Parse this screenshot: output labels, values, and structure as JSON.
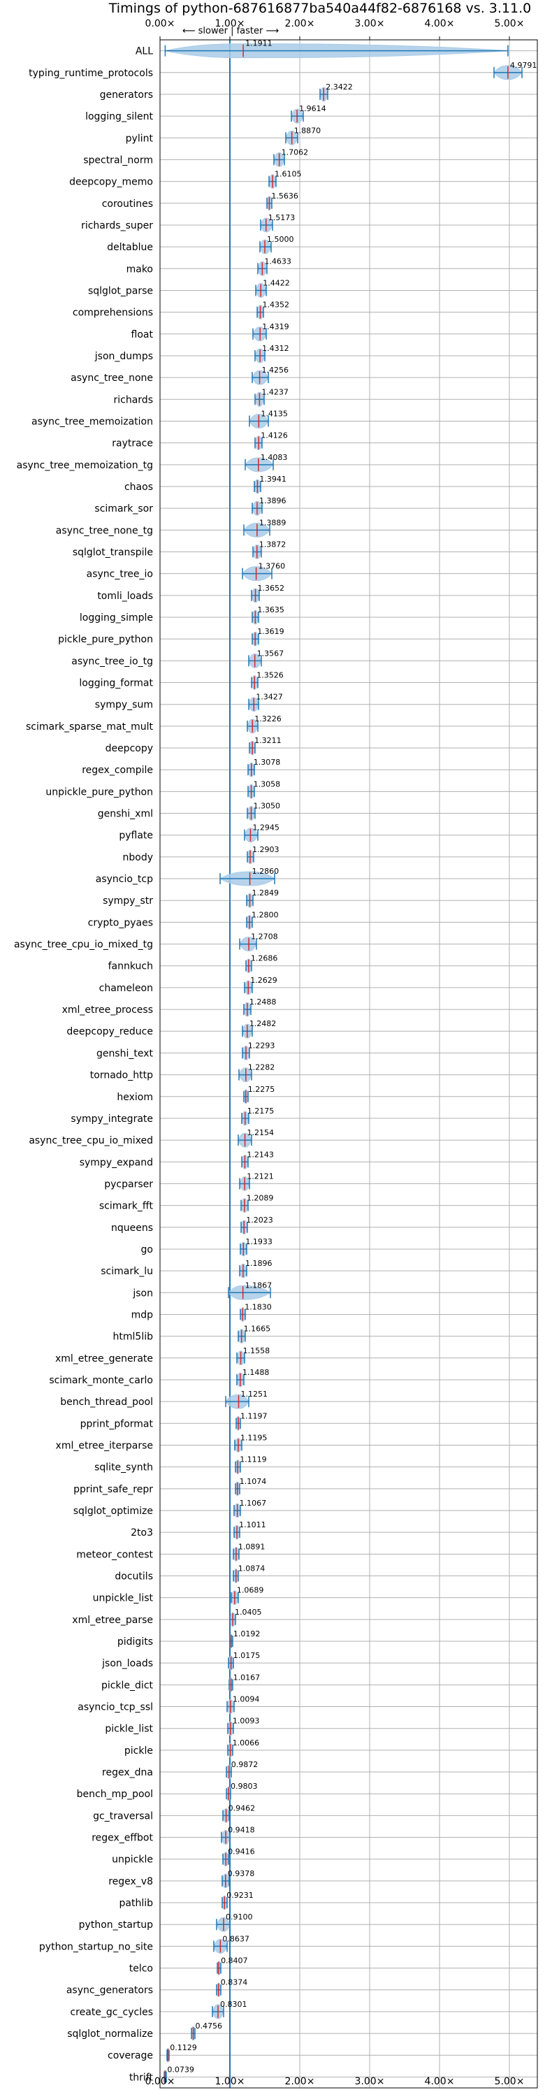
{
  "chart_data": {
    "type": "violin",
    "title": "Timings of python-687616877ba540a44f82-6876168 vs. 3.11.0",
    "annotation": "⟵ slower  |  faster ⟶",
    "xlabel": "",
    "ylabel": "",
    "xlim": [
      0,
      5.4
    ],
    "xticks": [
      "0.00×",
      "1.00×",
      "2.00×",
      "3.00×",
      "4.00×",
      "5.00×"
    ],
    "grid": true,
    "reference_line": 1.0,
    "colors": {
      "violin": "#a9cbe8",
      "mark": "#1f77b4",
      "median": "#d62728",
      "grid": "#b0b0b0"
    },
    "benchmarks": [
      {
        "name": "ALL",
        "value": 1.1911,
        "lo": 0.0739,
        "hi": 4.9791
      },
      {
        "name": "typing_runtime_protocols",
        "value": 4.9791,
        "lo": 4.78,
        "hi": 5.18
      },
      {
        "name": "generators",
        "value": 2.3422,
        "lo": 2.29,
        "hi": 2.4
      },
      {
        "name": "logging_silent",
        "value": 1.9614,
        "lo": 1.88,
        "hi": 2.05
      },
      {
        "name": "pylint",
        "value": 1.887,
        "lo": 1.8,
        "hi": 1.97
      },
      {
        "name": "spectral_norm",
        "value": 1.7062,
        "lo": 1.63,
        "hi": 1.78
      },
      {
        "name": "deepcopy_memo",
        "value": 1.6105,
        "lo": 1.56,
        "hi": 1.66
      },
      {
        "name": "coroutines",
        "value": 1.5636,
        "lo": 1.53,
        "hi": 1.6
      },
      {
        "name": "richards_super",
        "value": 1.5173,
        "lo": 1.44,
        "hi": 1.61
      },
      {
        "name": "deltablue",
        "value": 1.5,
        "lo": 1.43,
        "hi": 1.59
      },
      {
        "name": "mako",
        "value": 1.4633,
        "lo": 1.4,
        "hi": 1.53
      },
      {
        "name": "sqlglot_parse",
        "value": 1.4422,
        "lo": 1.37,
        "hi": 1.52
      },
      {
        "name": "comprehensions",
        "value": 1.4352,
        "lo": 1.39,
        "hi": 1.48
      },
      {
        "name": "float",
        "value": 1.4319,
        "lo": 1.33,
        "hi": 1.52
      },
      {
        "name": "json_dumps",
        "value": 1.4312,
        "lo": 1.36,
        "hi": 1.5
      },
      {
        "name": "async_tree_none",
        "value": 1.4256,
        "lo": 1.32,
        "hi": 1.55
      },
      {
        "name": "richards",
        "value": 1.4237,
        "lo": 1.36,
        "hi": 1.49
      },
      {
        "name": "async_tree_memoization",
        "value": 1.4135,
        "lo": 1.28,
        "hi": 1.55
      },
      {
        "name": "raytrace",
        "value": 1.4126,
        "lo": 1.36,
        "hi": 1.46
      },
      {
        "name": "async_tree_memoization_tg",
        "value": 1.4083,
        "lo": 1.22,
        "hi": 1.62
      },
      {
        "name": "chaos",
        "value": 1.3941,
        "lo": 1.35,
        "hi": 1.44
      },
      {
        "name": "scimark_sor",
        "value": 1.3896,
        "lo": 1.32,
        "hi": 1.46
      },
      {
        "name": "async_tree_none_tg",
        "value": 1.3889,
        "lo": 1.2,
        "hi": 1.57
      },
      {
        "name": "sqlglot_transpile",
        "value": 1.3872,
        "lo": 1.33,
        "hi": 1.45
      },
      {
        "name": "async_tree_io",
        "value": 1.376,
        "lo": 1.18,
        "hi": 1.6
      },
      {
        "name": "tomli_loads",
        "value": 1.3652,
        "lo": 1.31,
        "hi": 1.42
      },
      {
        "name": "logging_simple",
        "value": 1.3635,
        "lo": 1.32,
        "hi": 1.41
      },
      {
        "name": "pickle_pure_python",
        "value": 1.3619,
        "lo": 1.32,
        "hi": 1.41
      },
      {
        "name": "async_tree_io_tg",
        "value": 1.3567,
        "lo": 1.27,
        "hi": 1.45
      },
      {
        "name": "logging_format",
        "value": 1.3526,
        "lo": 1.31,
        "hi": 1.4
      },
      {
        "name": "sympy_sum",
        "value": 1.3427,
        "lo": 1.27,
        "hi": 1.41
      },
      {
        "name": "scimark_sparse_mat_mult",
        "value": 1.3226,
        "lo": 1.25,
        "hi": 1.4
      },
      {
        "name": "deepcopy",
        "value": 1.3211,
        "lo": 1.28,
        "hi": 1.36
      },
      {
        "name": "regex_compile",
        "value": 1.3078,
        "lo": 1.26,
        "hi": 1.35
      },
      {
        "name": "unpickle_pure_python",
        "value": 1.3058,
        "lo": 1.26,
        "hi": 1.35
      },
      {
        "name": "genshi_xml",
        "value": 1.305,
        "lo": 1.25,
        "hi": 1.36
      },
      {
        "name": "pyflate",
        "value": 1.2945,
        "lo": 1.21,
        "hi": 1.4
      },
      {
        "name": "nbody",
        "value": 1.2903,
        "lo": 1.25,
        "hi": 1.34
      },
      {
        "name": "asyncio_tcp",
        "value": 1.286,
        "lo": 0.86,
        "hi": 1.64
      },
      {
        "name": "sympy_str",
        "value": 1.2849,
        "lo": 1.24,
        "hi": 1.33
      },
      {
        "name": "crypto_pyaes",
        "value": 1.28,
        "lo": 1.24,
        "hi": 1.32
      },
      {
        "name": "async_tree_cpu_io_mixed_tg",
        "value": 1.2708,
        "lo": 1.14,
        "hi": 1.38
      },
      {
        "name": "fannkuch",
        "value": 1.2686,
        "lo": 1.23,
        "hi": 1.31
      },
      {
        "name": "chameleon",
        "value": 1.2629,
        "lo": 1.21,
        "hi": 1.32
      },
      {
        "name": "xml_etree_process",
        "value": 1.2488,
        "lo": 1.2,
        "hi": 1.3
      },
      {
        "name": "deepcopy_reduce",
        "value": 1.2482,
        "lo": 1.18,
        "hi": 1.32
      },
      {
        "name": "genshi_text",
        "value": 1.2293,
        "lo": 1.18,
        "hi": 1.28
      },
      {
        "name": "tornado_http",
        "value": 1.2282,
        "lo": 1.13,
        "hi": 1.31
      },
      {
        "name": "hexiom",
        "value": 1.2275,
        "lo": 1.2,
        "hi": 1.26
      },
      {
        "name": "sympy_integrate",
        "value": 1.2175,
        "lo": 1.17,
        "hi": 1.27
      },
      {
        "name": "async_tree_cpu_io_mixed",
        "value": 1.2154,
        "lo": 1.12,
        "hi": 1.31
      },
      {
        "name": "sympy_expand",
        "value": 1.2143,
        "lo": 1.17,
        "hi": 1.26
      },
      {
        "name": "pycparser",
        "value": 1.2121,
        "lo": 1.14,
        "hi": 1.28
      },
      {
        "name": "scimark_fft",
        "value": 1.2089,
        "lo": 1.16,
        "hi": 1.26
      },
      {
        "name": "nqueens",
        "value": 1.2023,
        "lo": 1.16,
        "hi": 1.25
      },
      {
        "name": "go",
        "value": 1.1933,
        "lo": 1.15,
        "hi": 1.24
      },
      {
        "name": "scimark_lu",
        "value": 1.1896,
        "lo": 1.14,
        "hi": 1.24
      },
      {
        "name": "json",
        "value": 1.1867,
        "lo": 0.98,
        "hi": 1.58
      },
      {
        "name": "mdp",
        "value": 1.183,
        "lo": 1.15,
        "hi": 1.22
      },
      {
        "name": "html5lib",
        "value": 1.1665,
        "lo": 1.12,
        "hi": 1.22
      },
      {
        "name": "xml_etree_generate",
        "value": 1.1558,
        "lo": 1.1,
        "hi": 1.21
      },
      {
        "name": "scimark_monte_carlo",
        "value": 1.1488,
        "lo": 1.1,
        "hi": 1.2
      },
      {
        "name": "bench_thread_pool",
        "value": 1.1251,
        "lo": 0.94,
        "hi": 1.27
      },
      {
        "name": "pprint_pformat",
        "value": 1.1197,
        "lo": 1.09,
        "hi": 1.15
      },
      {
        "name": "xml_etree_iterparse",
        "value": 1.1195,
        "lo": 1.07,
        "hi": 1.17
      },
      {
        "name": "sqlite_synth",
        "value": 1.1119,
        "lo": 1.08,
        "hi": 1.15
      },
      {
        "name": "pprint_safe_repr",
        "value": 1.1074,
        "lo": 1.08,
        "hi": 1.14
      },
      {
        "name": "sqlglot_optimize",
        "value": 1.1067,
        "lo": 1.06,
        "hi": 1.15
      },
      {
        "name": "2to3",
        "value": 1.1011,
        "lo": 1.06,
        "hi": 1.14
      },
      {
        "name": "meteor_contest",
        "value": 1.0891,
        "lo": 1.05,
        "hi": 1.13
      },
      {
        "name": "docutils",
        "value": 1.0874,
        "lo": 1.05,
        "hi": 1.12
      },
      {
        "name": "unpickle_list",
        "value": 1.0689,
        "lo": 1.02,
        "hi": 1.12
      },
      {
        "name": "xml_etree_parse",
        "value": 1.0405,
        "lo": 1.0,
        "hi": 1.08
      },
      {
        "name": "pidigits",
        "value": 1.0192,
        "lo": 1.0,
        "hi": 1.04
      },
      {
        "name": "json_loads",
        "value": 1.0175,
        "lo": 0.98,
        "hi": 1.05
      },
      {
        "name": "pickle_dict",
        "value": 1.0167,
        "lo": 0.99,
        "hi": 1.04
      },
      {
        "name": "asyncio_tcp_ssl",
        "value": 1.0094,
        "lo": 0.96,
        "hi": 1.06
      },
      {
        "name": "pickle_list",
        "value": 1.0093,
        "lo": 0.97,
        "hi": 1.05
      },
      {
        "name": "pickle",
        "value": 1.0066,
        "lo": 0.97,
        "hi": 1.04
      },
      {
        "name": "regex_dna",
        "value": 0.9872,
        "lo": 0.95,
        "hi": 1.02
      },
      {
        "name": "bench_mp_pool",
        "value": 0.9803,
        "lo": 0.95,
        "hi": 1.01
      },
      {
        "name": "gc_traversal",
        "value": 0.9462,
        "lo": 0.9,
        "hi": 0.99
      },
      {
        "name": "regex_effbot",
        "value": 0.9418,
        "lo": 0.88,
        "hi": 1.0
      },
      {
        "name": "unpickle",
        "value": 0.9416,
        "lo": 0.9,
        "hi": 0.98
      },
      {
        "name": "regex_v8",
        "value": 0.9378,
        "lo": 0.89,
        "hi": 0.99
      },
      {
        "name": "pathlib",
        "value": 0.9231,
        "lo": 0.89,
        "hi": 0.96
      },
      {
        "name": "python_startup",
        "value": 0.91,
        "lo": 0.81,
        "hi": 1.0
      },
      {
        "name": "python_startup_no_site",
        "value": 0.8637,
        "lo": 0.77,
        "hi": 0.96
      },
      {
        "name": "telco",
        "value": 0.8407,
        "lo": 0.82,
        "hi": 0.87
      },
      {
        "name": "async_generators",
        "value": 0.8374,
        "lo": 0.81,
        "hi": 0.87
      },
      {
        "name": "create_gc_cycles",
        "value": 0.8301,
        "lo": 0.75,
        "hi": 0.91
      },
      {
        "name": "sqlglot_normalize",
        "value": 0.4756,
        "lo": 0.45,
        "hi": 0.5
      },
      {
        "name": "coverage",
        "value": 0.1129,
        "lo": 0.1,
        "hi": 0.13
      },
      {
        "name": "thrift",
        "value": 0.0739,
        "lo": 0.06,
        "hi": 0.09
      }
    ]
  }
}
